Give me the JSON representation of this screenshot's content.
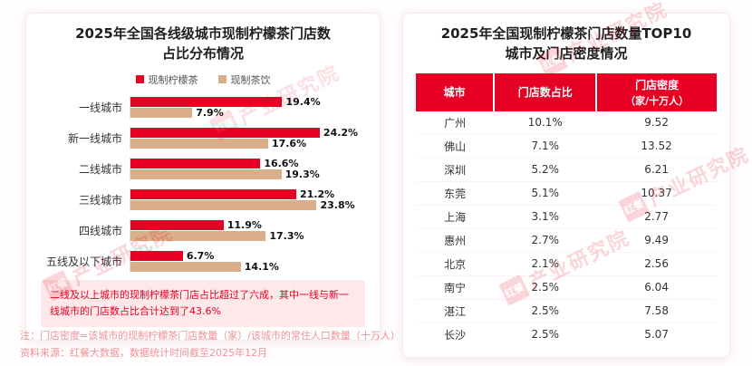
{
  "watermark": {
    "seal_text": "红餐",
    "brand_text": "产业研究院"
  },
  "left_panel": {
    "title_line1": "2025年全国各线级城市现制柠檬茶门店数",
    "title_line2": "占比分布情况",
    "note": "二线及以上城市的现制柠檬茶门店占比超过了六成，其中一线与新一线城市的门店数占比合计达到了43.6%"
  },
  "right_panel": {
    "title_line1": "2025年全国现制柠檬茶门店数量TOP10",
    "title_line2": "城市及门店密度情况"
  },
  "chart_data": [
    {
      "type": "bar",
      "orientation": "horizontal",
      "title": "2025年全国各线级城市现制柠檬茶门店数占比分布情况",
      "categories": [
        "一线城市",
        "新一线城市",
        "二线城市",
        "三线城市",
        "四线城市",
        "五线及以下城市"
      ],
      "series": [
        {
          "name": "现制柠檬茶",
          "color": "#e60023",
          "values": [
            19.4,
            24.2,
            16.6,
            21.2,
            11.9,
            6.7
          ]
        },
        {
          "name": "现制茶饮",
          "color": "#d9ae88",
          "values": [
            7.9,
            17.6,
            19.3,
            23.8,
            17.3,
            14.1
          ]
        }
      ],
      "unit": "%",
      "xlim": [
        0,
        30
      ],
      "value_labels": true,
      "legend_position": "top",
      "grid": false
    },
    {
      "type": "table",
      "title": "2025年全国现制柠檬茶门店数量TOP10城市及门店密度情况",
      "columns": [
        {
          "label": "城市"
        },
        {
          "label": "门店数占比"
        },
        {
          "label": "门店密度",
          "sub": "（家/十万人）"
        }
      ],
      "rows": [
        [
          "广州",
          "10.1%",
          "9.52"
        ],
        [
          "佛山",
          "7.1%",
          "13.52"
        ],
        [
          "深圳",
          "5.2%",
          "6.21"
        ],
        [
          "东莞",
          "5.1%",
          "10.37"
        ],
        [
          "上海",
          "3.1%",
          "2.77"
        ],
        [
          "惠州",
          "2.7%",
          "9.49"
        ],
        [
          "北京",
          "2.1%",
          "2.56"
        ],
        [
          "南宁",
          "2.5%",
          "6.04"
        ],
        [
          "湛江",
          "2.5%",
          "7.58"
        ],
        [
          "长沙",
          "2.5%",
          "5.07"
        ]
      ]
    }
  ],
  "footnotes": [
    "注：门店密度=该城市的现制柠檬茶门店数量（家）/该城市的常住人口数量（十万人）",
    "资料来源：红餐大数据，数据统计时间截至2025年12月"
  ],
  "colors": {
    "brand_red": "#e60023",
    "bar_tan": "#d9ae88",
    "note_bg": "#fde9ea",
    "note_text": "#e60021"
  }
}
